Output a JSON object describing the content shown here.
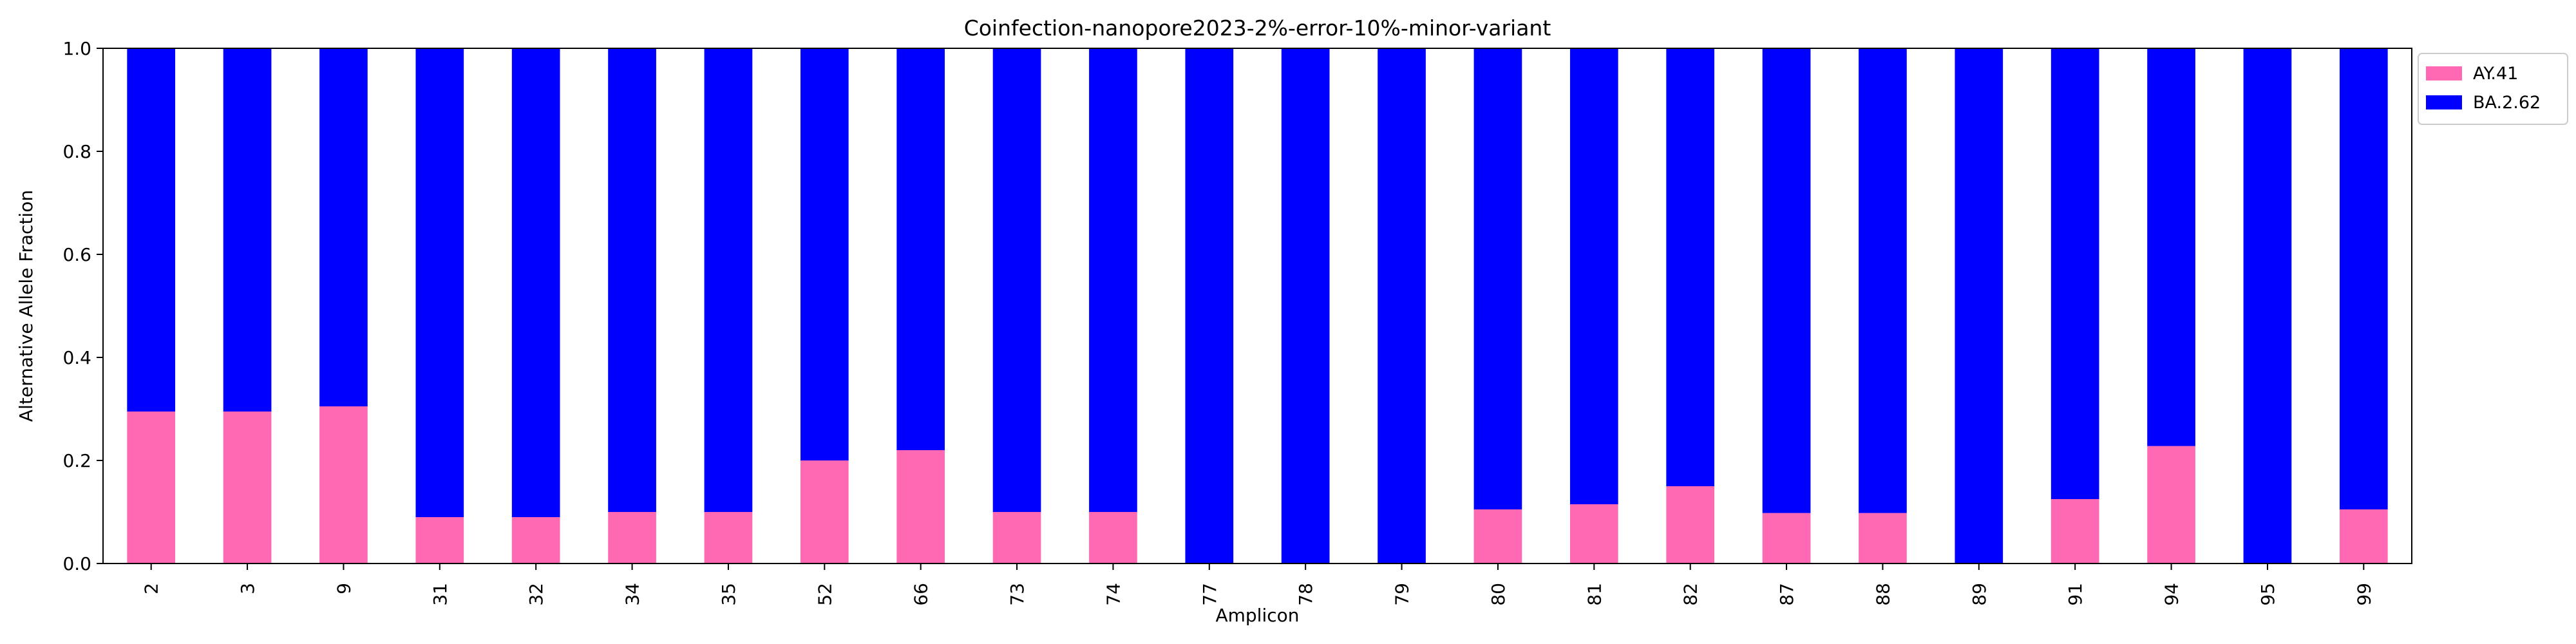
{
  "chart_data": {
    "type": "bar",
    "stacked": true,
    "title": "Coinfection-nanopore2023-2%-error-10%-minor-variant",
    "xlabel": "Amplicon",
    "ylabel": "Alternative Allele Fraction",
    "ylim": [
      0,
      1.0
    ],
    "yticks": [
      "0.0",
      "0.2",
      "0.4",
      "0.6",
      "0.8",
      "1.0"
    ],
    "categories": [
      "2",
      "3",
      "9",
      "31",
      "32",
      "34",
      "35",
      "52",
      "66",
      "73",
      "74",
      "77",
      "78",
      "79",
      "80",
      "81",
      "82",
      "87",
      "88",
      "89",
      "91",
      "94",
      "95",
      "99"
    ],
    "series": [
      {
        "name": "AY.41",
        "color": "#ff69b4",
        "values": [
          0.295,
          0.295,
          0.305,
          0.09,
          0.09,
          0.1,
          0.1,
          0.2,
          0.22,
          0.1,
          0.1,
          0.0,
          0.0,
          0.0,
          0.105,
          0.115,
          0.15,
          0.098,
          0.098,
          0.0,
          0.125,
          0.228,
          0.0,
          0.105
        ]
      },
      {
        "name": "BA.2.62",
        "color": "#0000ff",
        "values": [
          0.705,
          0.705,
          0.695,
          0.91,
          0.91,
          0.9,
          0.9,
          0.8,
          0.78,
          0.9,
          0.9,
          1.0,
          1.0,
          1.0,
          0.895,
          0.885,
          0.85,
          0.902,
          0.902,
          1.0,
          0.875,
          0.772,
          1.0,
          0.895
        ]
      }
    ],
    "grid": false,
    "legend_position": "outside-upper-right"
  }
}
